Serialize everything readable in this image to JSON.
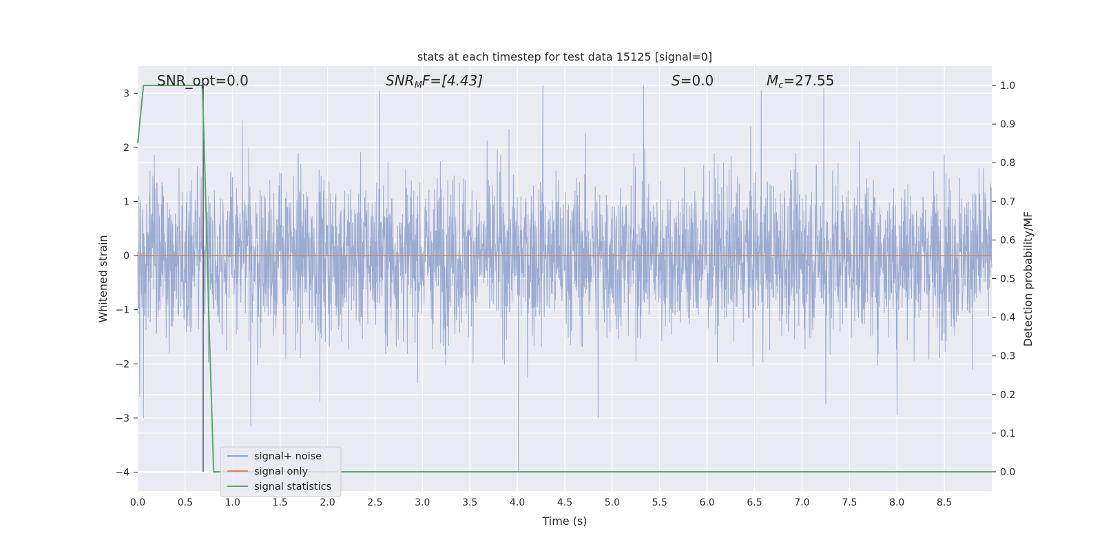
{
  "chart_data": {
    "type": "line",
    "title": "stats at each timestep for test data 15125 [signal=0]",
    "xlabel": "Time (s)",
    "ylabel": "Whitened strain",
    "y2label": "Detection probability/MF",
    "xlim": [
      0.0,
      9.0
    ],
    "ylim": [
      -4.35,
      3.5
    ],
    "y2lim": [
      -0.05,
      1.05
    ],
    "xticks": [
      "0.0",
      "0.5",
      "1.0",
      "1.5",
      "2.0",
      "2.5",
      "3.0",
      "3.5",
      "4.0",
      "4.5",
      "5.0",
      "5.5",
      "6.0",
      "6.5",
      "7.0",
      "7.5",
      "8.0",
      "8.5"
    ],
    "yticks": [
      "3",
      "2",
      "1",
      "0",
      "−1",
      "−2",
      "−3",
      "−4"
    ],
    "y2ticks": [
      "1.0",
      "0.9",
      "0.8",
      "0.7",
      "0.6",
      "0.5",
      "0.4",
      "0.3",
      "0.2",
      "0.1",
      "0.0"
    ],
    "grid": true,
    "legend_position": "lower-left",
    "annotations": {
      "snr_opt": "SNR_opt=0.0",
      "snr_mf_main": "SNR",
      "snr_mf_sub": "M",
      "snr_mf_rest": "F=[4.43]",
      "s_main": "S",
      "s_rest": "=0.0",
      "mc_main": "M",
      "mc_sub": "c",
      "mc_rest": "=27.55"
    },
    "vline_x": 0.69,
    "series": [
      {
        "name": "signal+ noise",
        "color": "#8da0cb",
        "axis": "left",
        "description_values": "dense noise between about -3 and 3",
        "spikes": [
          {
            "x": 0.02,
            "y": -2.6
          },
          {
            "x": 0.06,
            "y": -3.0
          },
          {
            "x": 1.1,
            "y": 2.5
          },
          {
            "x": 1.19,
            "y": -3.15
          },
          {
            "x": 1.92,
            "y": -2.7
          },
          {
            "x": 2.55,
            "y": 3.05
          },
          {
            "x": 4.01,
            "y": -4.0
          },
          {
            "x": 4.27,
            "y": 3.15
          },
          {
            "x": 4.85,
            "y": -3.0
          },
          {
            "x": 5.33,
            "y": 3.15
          },
          {
            "x": 6.57,
            "y": 3.05
          },
          {
            "x": 7.23,
            "y": 3.1
          },
          {
            "x": 7.25,
            "y": -2.75
          },
          {
            "x": 8.0,
            "y": -2.95
          }
        ]
      },
      {
        "name": "signal only",
        "color": "#dd8452",
        "axis": "left",
        "x": [
          0.0,
          9.0
        ],
        "values": [
          0.0,
          0.0
        ]
      },
      {
        "name": "signal statistics",
        "color": "#55a868",
        "axis": "right",
        "x": [
          0.0,
          0.06,
          0.12,
          0.68,
          0.7,
          0.75,
          0.8,
          0.85,
          9.0
        ],
        "values": [
          0.85,
          1.0,
          1.0,
          1.0,
          0.85,
          0.4,
          0.0,
          0.0,
          0.0
        ]
      }
    ]
  }
}
